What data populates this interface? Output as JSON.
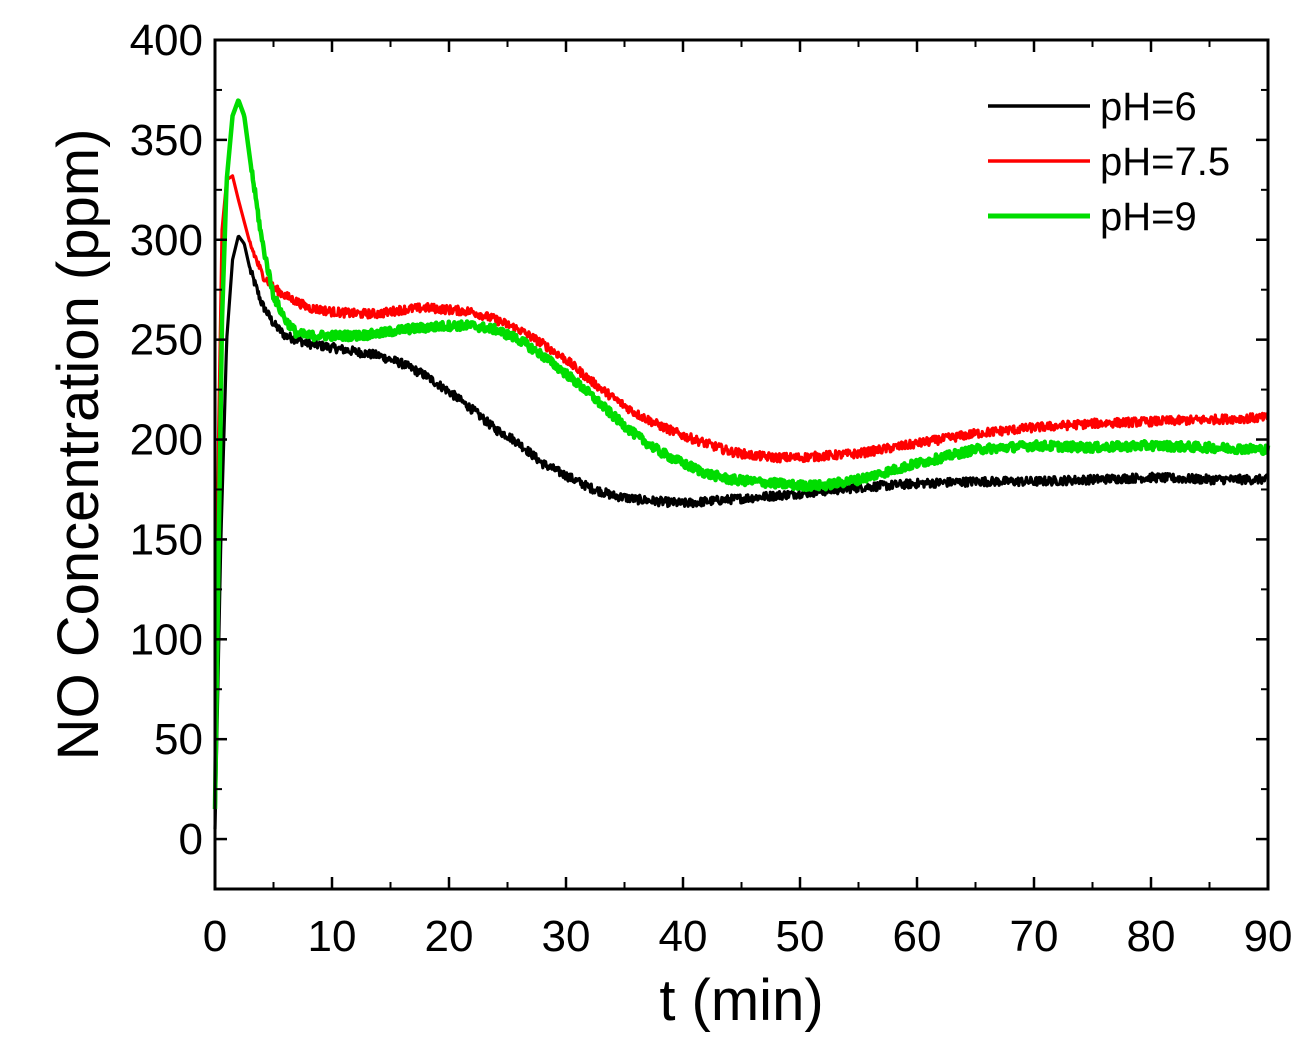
{
  "chart_data": {
    "type": "line",
    "title": "",
    "xlabel": "t (min)",
    "ylabel": "NO Concentration (ppm)",
    "xlim": [
      0,
      90
    ],
    "ylim": [
      -25,
      400
    ],
    "xticks": [
      0,
      10,
      20,
      30,
      40,
      50,
      60,
      70,
      80,
      90
    ],
    "xtick_labels": [
      "0",
      "10",
      "20",
      "30",
      "40",
      "50",
      "60",
      "70",
      "80",
      "90"
    ],
    "yticks": [
      0,
      50,
      100,
      150,
      200,
      250,
      300,
      350,
      400
    ],
    "ytick_labels": [
      "0",
      "50",
      "100",
      "150",
      "200",
      "250",
      "300",
      "350",
      "400"
    ],
    "grid": false,
    "legend_position": "top-right",
    "series": [
      {
        "name": "pH=6",
        "color": "#000000",
        "x": [
          0,
          0.5,
          1.0,
          1.5,
          2.0,
          2.5,
          3,
          4,
          5,
          6,
          7,
          8,
          10,
          12,
          14,
          16,
          18,
          20,
          22,
          24,
          25,
          26,
          28,
          30,
          32,
          34,
          36,
          38,
          40,
          42,
          44,
          46,
          48,
          50,
          55,
          60,
          65,
          70,
          75,
          80,
          85,
          90
        ],
        "y": [
          5,
          150,
          250,
          290,
          302,
          298,
          285,
          268,
          258,
          252,
          250,
          248,
          246,
          244,
          242,
          238,
          232,
          224,
          215,
          205,
          202,
          198,
          188,
          182,
          176,
          172,
          170,
          169,
          168,
          169,
          170,
          171,
          172,
          173,
          176,
          178,
          179,
          179,
          180,
          181,
          180,
          180
        ]
      },
      {
        "name": "pH=7.5",
        "color": "#ff0000",
        "x": [
          0,
          0.3,
          0.6,
          1.0,
          1.5,
          2.0,
          3,
          4,
          5,
          6,
          7,
          8,
          10,
          12,
          14,
          16,
          18,
          20,
          22,
          24,
          26,
          28,
          30,
          32,
          34,
          36,
          38,
          40,
          42,
          44,
          46,
          48,
          50,
          55,
          60,
          65,
          70,
          75,
          80,
          85,
          90
        ],
        "y": [
          15,
          200,
          305,
          330,
          332,
          320,
          298,
          283,
          276,
          272,
          269,
          266,
          264,
          263,
          263,
          265,
          266,
          265,
          264,
          260,
          255,
          248,
          240,
          230,
          221,
          213,
          207,
          202,
          198,
          194,
          192,
          191,
          191,
          193,
          198,
          203,
          206,
          208,
          209,
          210,
          211
        ]
      },
      {
        "name": "pH=9",
        "color": "#00dd00",
        "x": [
          0,
          0.3,
          0.6,
          1.0,
          1.5,
          2.0,
          2.5,
          3,
          4,
          5,
          6,
          7,
          8,
          10,
          12,
          14,
          16,
          18,
          20,
          22,
          24,
          26,
          28,
          30,
          32,
          34,
          36,
          38,
          40,
          42,
          44,
          46,
          48,
          50,
          52,
          55,
          60,
          65,
          70,
          75,
          80,
          85,
          90
        ],
        "y": [
          15,
          140,
          260,
          330,
          362,
          370,
          362,
          340,
          300,
          272,
          260,
          253,
          252,
          252,
          252,
          253,
          255,
          256,
          257,
          257,
          255,
          250,
          242,
          233,
          223,
          212,
          202,
          194,
          188,
          183,
          180,
          179,
          178,
          177,
          177,
          180,
          188,
          195,
          197,
          196,
          197,
          196,
          195
        ]
      }
    ]
  }
}
